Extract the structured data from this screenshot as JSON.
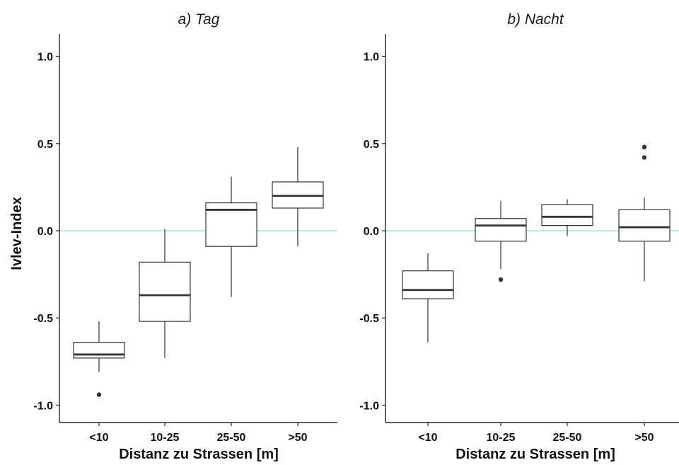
{
  "chart_data": {
    "type": "box",
    "ylabel": "Ivlev-Index",
    "xlabel": "Distanz zu Strassen [m]",
    "categories": [
      "<10",
      "10-25",
      "25-50",
      ">50"
    ],
    "ylim": [
      -1.1,
      1.1
    ],
    "yticks": [
      1.0,
      0.5,
      0.0,
      -0.5,
      -1.0
    ],
    "ytick_labels": [
      "1.0",
      "0.5",
      "0.0",
      "-0.5",
      "-1.0"
    ],
    "reference_line": {
      "y": 0.0,
      "color": "#a8e0e0"
    },
    "grid": false,
    "panels": [
      {
        "title": "a) Tag",
        "boxes": [
          {
            "category": "<10",
            "whisker_low": -0.81,
            "q1": -0.73,
            "median": -0.71,
            "q3": -0.64,
            "whisker_high": -0.52,
            "outliers": [
              -0.94
            ]
          },
          {
            "category": "10-25",
            "whisker_low": -0.73,
            "q1": -0.52,
            "median": -0.37,
            "q3": -0.18,
            "whisker_high": 0.01,
            "outliers": []
          },
          {
            "category": "25-50",
            "whisker_low": -0.38,
            "q1": -0.09,
            "median": 0.12,
            "q3": 0.16,
            "whisker_high": 0.31,
            "outliers": []
          },
          {
            "category": ">50",
            "whisker_low": -0.09,
            "q1": 0.13,
            "median": 0.2,
            "q3": 0.28,
            "whisker_high": 0.48,
            "outliers": []
          }
        ]
      },
      {
        "title": "b) Nacht",
        "boxes": [
          {
            "category": "<10",
            "whisker_low": -0.64,
            "q1": -0.39,
            "median": -0.34,
            "q3": -0.23,
            "whisker_high": -0.13,
            "outliers": []
          },
          {
            "category": "10-25",
            "whisker_low": -0.22,
            "q1": -0.06,
            "median": 0.03,
            "q3": 0.07,
            "whisker_high": 0.17,
            "outliers": [
              -0.28
            ]
          },
          {
            "category": "25-50",
            "whisker_low": -0.03,
            "q1": 0.03,
            "median": 0.08,
            "q3": 0.15,
            "whisker_high": 0.18,
            "outliers": []
          },
          {
            "category": ">50",
            "whisker_low": -0.29,
            "q1": -0.06,
            "median": 0.02,
            "q3": 0.12,
            "whisker_high": 0.19,
            "outliers": [
              0.42,
              0.48
            ]
          }
        ]
      }
    ]
  }
}
